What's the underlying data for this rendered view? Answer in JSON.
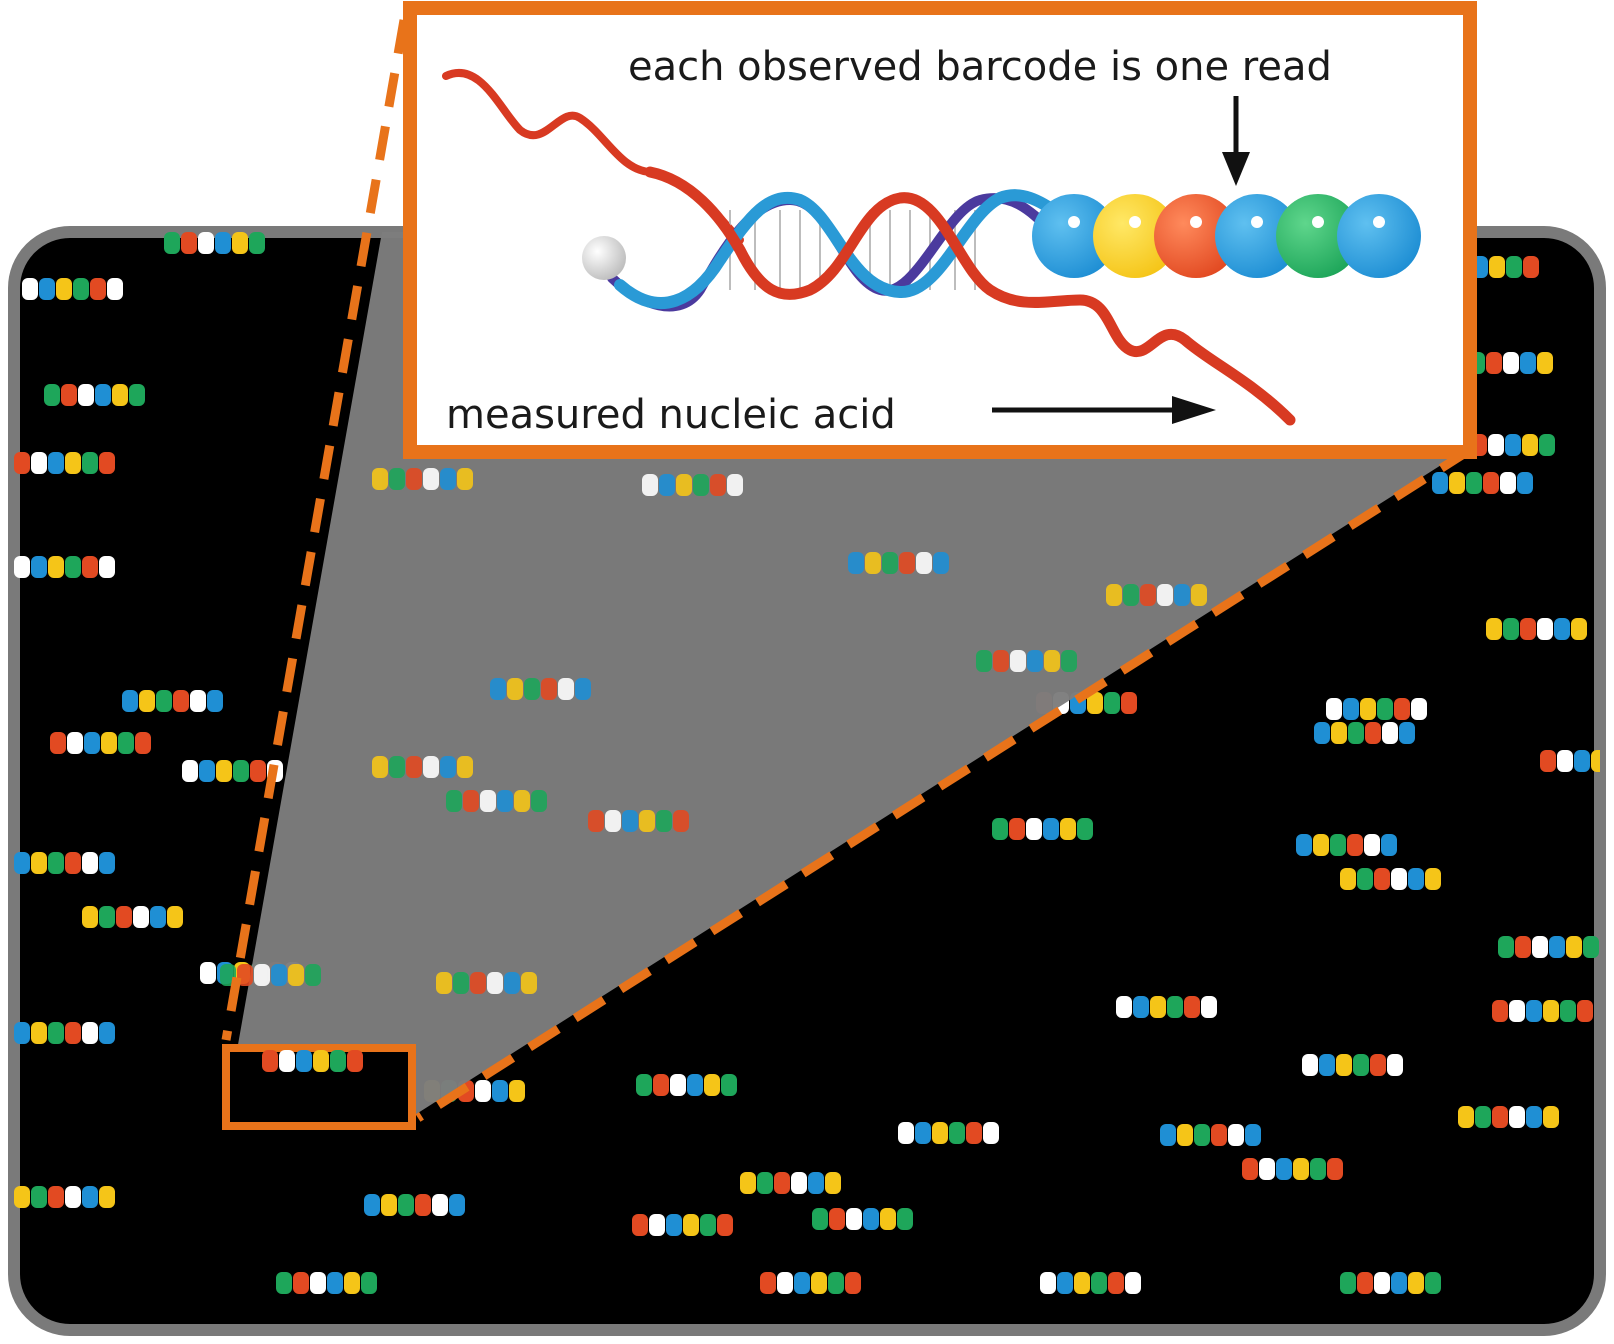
{
  "labels": {
    "barcode_caption": "each observed barcode is one read",
    "nucleic_acid_caption": "measured nucleic acid"
  },
  "colors": {
    "panel_background": "#000000",
    "panel_border": "#7a7a7a",
    "zoom_region": "#7d7d7d",
    "callout_outline": "#e8731a",
    "dna_strand_red": "#d83a22",
    "dna_strand_cyan": "#2a9ad6",
    "dna_strand_purple": "#4b3a9e",
    "bead_blue": "#1f8fd4",
    "bead_yellow": "#f5c518",
    "bead_red": "#e24a22",
    "bead_green": "#1ea65a",
    "anchor_bead": "#d9d9d9"
  },
  "icons": {
    "down_arrow": "arrow-down-icon",
    "right_arrow": "arrow-right-icon",
    "anchor": "anchor-bead-icon"
  },
  "barcode_beads": [
    "blue",
    "yellow",
    "red",
    "blue",
    "green",
    "blue"
  ]
}
